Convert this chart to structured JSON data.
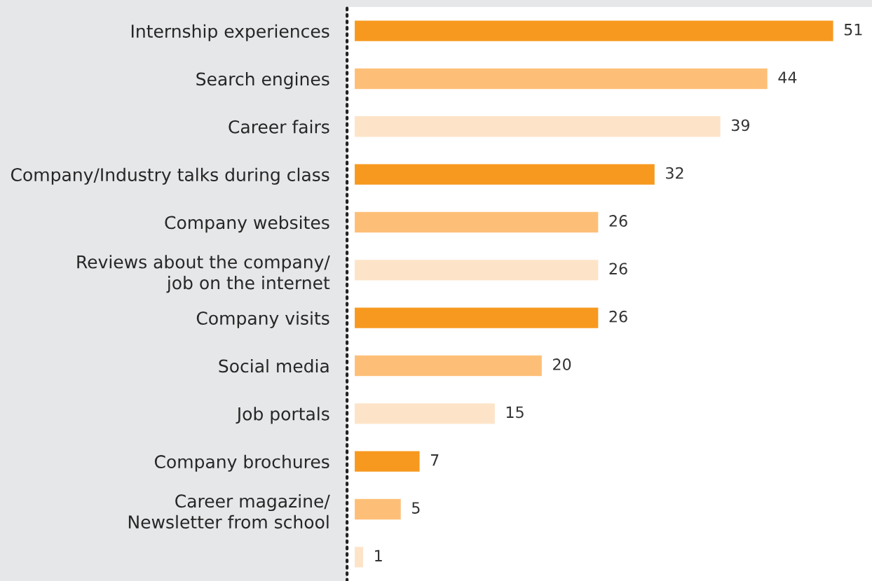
{
  "chart_data": {
    "type": "bar",
    "orientation": "horizontal",
    "data_labels": true,
    "grid": false,
    "legend": false,
    "tick_labels": "y",
    "categories": [
      "Internship experiences",
      "Search engines",
      "Career fairs",
      "Company/Industry talks during class",
      "Company websites",
      "Reviews about the company/\njob on the internet",
      "Company visits",
      "Social media",
      "Job portals",
      "Company brochures",
      "Career magazine/\nNewsletter from school",
      null
    ],
    "values": [
      51,
      44,
      39,
      32,
      26,
      26,
      26,
      20,
      15,
      7,
      5,
      1
    ],
    "colors": [
      "#f7991f",
      "#fdbf78",
      "#fde4c8",
      "#f7991f",
      "#fdbf78",
      "#fde4c8",
      "#f7991f",
      "#fdbf78",
      "#fde4c8",
      "#f7991f",
      "#fdbf78",
      "#fde4c8"
    ]
  }
}
